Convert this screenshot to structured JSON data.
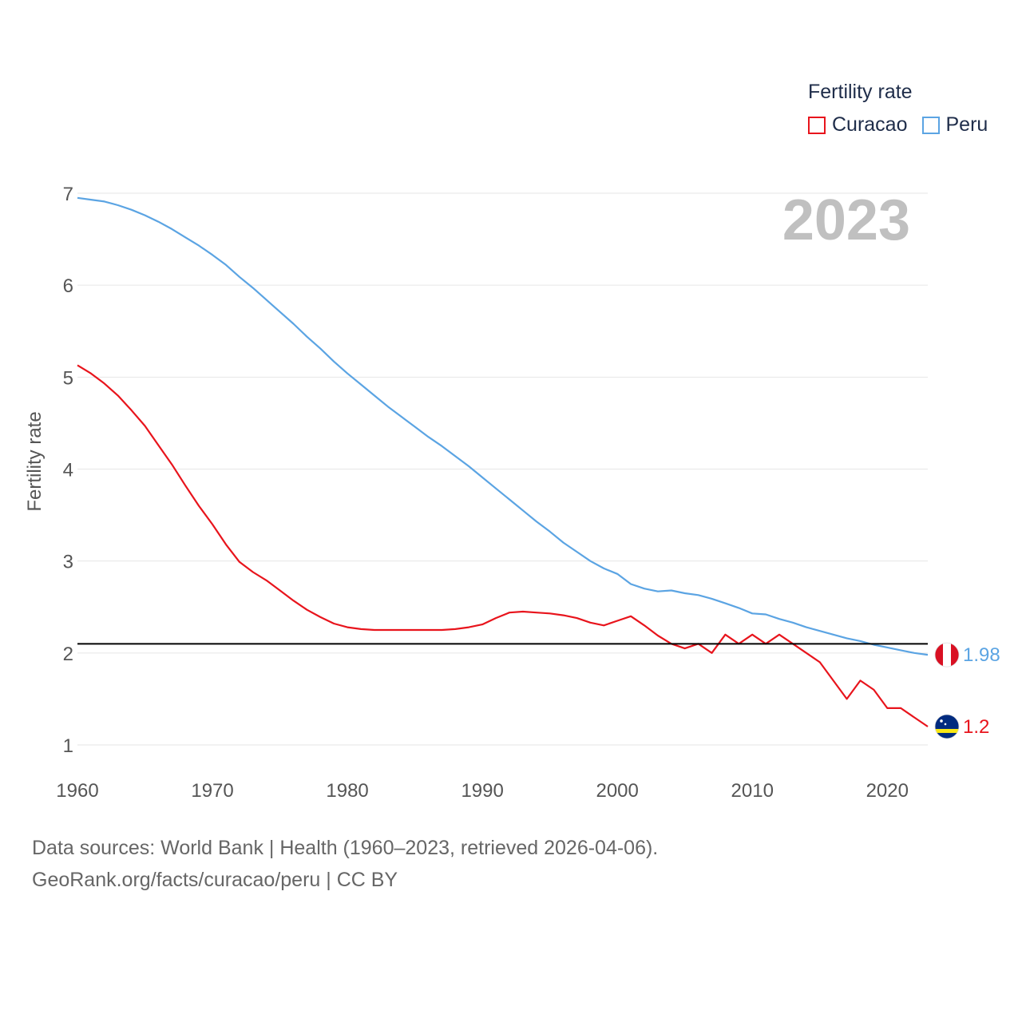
{
  "chart_data": {
    "type": "line",
    "title": "",
    "year_label": "2023",
    "xlabel": "",
    "ylabel": "Fertility rate",
    "xlim": [
      1960,
      2023
    ],
    "ylim": [
      0.8,
      7.0
    ],
    "x_ticks": [
      1960,
      1970,
      1980,
      1990,
      2000,
      2010,
      2020
    ],
    "y_ticks": [
      1,
      2,
      3,
      4,
      5,
      6,
      7
    ],
    "grid": true,
    "legend_title": "Fertility rate",
    "legend_position": "top-right",
    "reference_line": {
      "y": 2.1,
      "color": "#000000"
    },
    "series": [
      {
        "name": "Curacao",
        "color": "#e8141c",
        "end_label": "1.2",
        "flag_icon": "curacao-flag-icon",
        "x": [
          1960,
          1961,
          1962,
          1963,
          1964,
          1965,
          1966,
          1967,
          1968,
          1969,
          1970,
          1971,
          1972,
          1973,
          1974,
          1975,
          1976,
          1977,
          1978,
          1979,
          1980,
          1981,
          1982,
          1983,
          1984,
          1985,
          1986,
          1987,
          1988,
          1989,
          1990,
          1991,
          1992,
          1993,
          1994,
          1995,
          1996,
          1997,
          1998,
          1999,
          2000,
          2001,
          2002,
          2003,
          2004,
          2005,
          2006,
          2007,
          2008,
          2009,
          2010,
          2011,
          2012,
          2013,
          2014,
          2015,
          2016,
          2017,
          2018,
          2019,
          2020,
          2021,
          2022,
          2023
        ],
        "values": [
          5.13,
          5.04,
          4.93,
          4.8,
          4.64,
          4.47,
          4.26,
          4.05,
          3.82,
          3.6,
          3.4,
          3.18,
          2.99,
          2.88,
          2.79,
          2.68,
          2.57,
          2.47,
          2.39,
          2.32,
          2.28,
          2.26,
          2.25,
          2.25,
          2.25,
          2.25,
          2.25,
          2.25,
          2.26,
          2.28,
          2.31,
          2.38,
          2.44,
          2.45,
          2.44,
          2.43,
          2.41,
          2.38,
          2.33,
          2.3,
          2.35,
          2.4,
          2.3,
          2.19,
          2.1,
          2.05,
          2.1,
          2.0,
          2.2,
          2.1,
          2.2,
          2.1,
          2.2,
          2.1,
          2.0,
          1.9,
          1.7,
          1.5,
          1.7,
          1.6,
          1.4,
          1.4,
          1.3,
          1.2
        ]
      },
      {
        "name": "Peru",
        "color": "#5ba4e3",
        "end_label": "1.98",
        "flag_icon": "peru-flag-icon",
        "x": [
          1960,
          1961,
          1962,
          1963,
          1964,
          1965,
          1966,
          1967,
          1968,
          1969,
          1970,
          1971,
          1972,
          1973,
          1974,
          1975,
          1976,
          1977,
          1978,
          1979,
          1980,
          1981,
          1982,
          1983,
          1984,
          1985,
          1986,
          1987,
          1988,
          1989,
          1990,
          1991,
          1992,
          1993,
          1994,
          1995,
          1996,
          1997,
          1998,
          1999,
          2000,
          2001,
          2002,
          2003,
          2004,
          2005,
          2006,
          2007,
          2008,
          2009,
          2010,
          2011,
          2012,
          2013,
          2014,
          2015,
          2016,
          2017,
          2018,
          2019,
          2020,
          2021,
          2022,
          2023
        ],
        "values": [
          6.95,
          6.93,
          6.91,
          6.87,
          6.82,
          6.76,
          6.69,
          6.61,
          6.52,
          6.43,
          6.33,
          6.22,
          6.09,
          5.97,
          5.84,
          5.71,
          5.58,
          5.44,
          5.31,
          5.17,
          5.04,
          4.92,
          4.8,
          4.68,
          4.57,
          4.46,
          4.35,
          4.25,
          4.14,
          4.03,
          3.91,
          3.79,
          3.67,
          3.55,
          3.43,
          3.32,
          3.2,
          3.1,
          3.0,
          2.92,
          2.86,
          2.75,
          2.7,
          2.67,
          2.68,
          2.65,
          2.63,
          2.59,
          2.54,
          2.49,
          2.43,
          2.42,
          2.37,
          2.33,
          2.28,
          2.24,
          2.2,
          2.16,
          2.13,
          2.09,
          2.06,
          2.03,
          2.0,
          1.98
        ]
      }
    ]
  },
  "footer": {
    "line1": "Data sources: World Bank | Health (1960–2023, retrieved 2026-04-06).",
    "line2": "GeoRank.org/facts/curacao/peru | CC BY"
  }
}
